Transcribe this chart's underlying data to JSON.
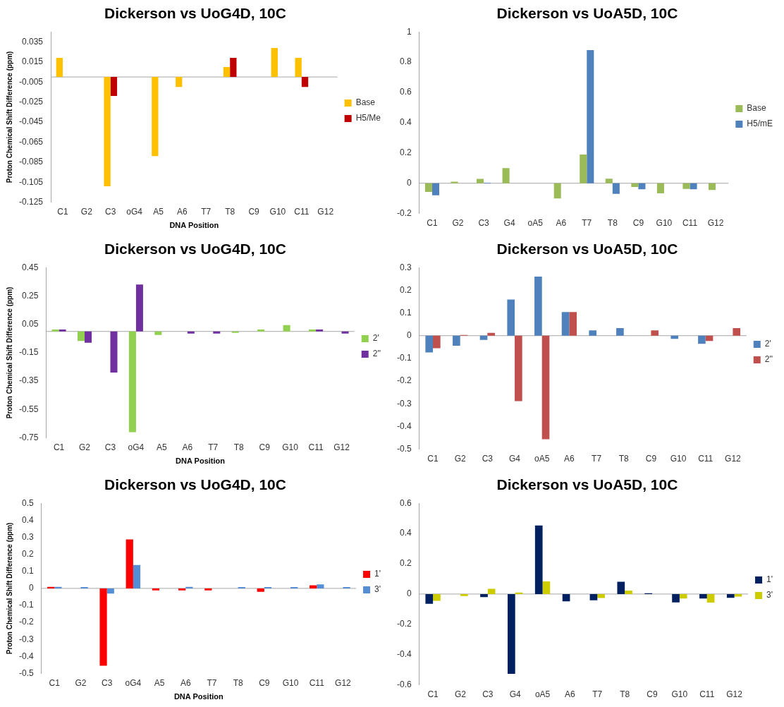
{
  "chart_data": [
    {
      "type": "bar",
      "title": "Dickerson vs UoG4D, 10C",
      "xlabel": "DNA Position",
      "ylabel": "Proton Chemical Shift Difference (ppm)",
      "categories": [
        "C1",
        "G2",
        "C3",
        "oG4",
        "A5",
        "A6",
        "T7",
        "T8",
        "C9",
        "G10",
        "C11",
        "G12"
      ],
      "series": [
        {
          "name": "Base",
          "color": "#ffc000",
          "values": [
            0.019,
            0,
            -0.109,
            0,
            -0.079,
            -0.01,
            0,
            0.01,
            0,
            0.029,
            0.019,
            0
          ]
        },
        {
          "name": "H5/Me",
          "color": "#c00000",
          "values": [
            0,
            0,
            -0.019,
            0,
            0,
            0,
            0,
            0.019,
            0,
            0,
            -0.01,
            0
          ]
        }
      ],
      "ref_lines": [
        {
          "axis": "y",
          "value": 0,
          "color": "#a6a6a6"
        }
      ],
      "ylim": [
        -0.125,
        0.045
      ],
      "yticks": [
        -0.125,
        -0.105,
        -0.085,
        -0.065,
        -0.045,
        -0.025,
        -0.005,
        0.015,
        0.035
      ],
      "grid": false,
      "legend": "right"
    },
    {
      "type": "bar",
      "title": "Dickerson vs UoA5D, 10C",
      "categories": [
        "C1",
        "G2",
        "C3",
        "G4",
        "oA5",
        "A6",
        "T7",
        "T8",
        "C9",
        "G10",
        "C11",
        "G12"
      ],
      "series": [
        {
          "name": "Base",
          "color": "#9bbb59",
          "values": [
            -0.057,
            0.01,
            0.029,
            0.1,
            0,
            -0.1,
            0.19,
            0.03,
            -0.025,
            -0.067,
            -0.037,
            -0.045
          ]
        },
        {
          "name": "H5/mE",
          "color": "#4f81bd",
          "values": [
            -0.08,
            0,
            0.003,
            0,
            0,
            0,
            0.88,
            -0.07,
            -0.04,
            0,
            -0.04,
            0
          ]
        }
      ],
      "ref_lines": [
        {
          "axis": "y",
          "value": 0,
          "color": "#a6a6a6"
        }
      ],
      "ylim": [
        -0.2,
        1
      ],
      "yticks": [
        -0.2,
        0,
        0.2,
        0.4,
        0.6,
        0.8,
        1
      ],
      "grid": false,
      "legend": "right"
    },
    {
      "type": "bar",
      "title": "Dickerson vs UoG4D, 10C",
      "xlabel": "DNA Position",
      "ylabel": "Proton Chemical Shift Difference (ppm)",
      "categories": [
        "C1",
        "G2",
        "C3",
        "oG4",
        "A5",
        "A6",
        "T7",
        "T8",
        "C9",
        "G10",
        "C11",
        "G12"
      ],
      "series": [
        {
          "name": "2'",
          "color": "#92d050",
          "values": [
            0.013,
            -0.067,
            0,
            -0.71,
            -0.025,
            0,
            0,
            -0.01,
            0.013,
            0.044,
            0.013,
            0
          ]
        },
        {
          "name": "2''",
          "color": "#7030a0",
          "values": [
            0.013,
            -0.08,
            -0.29,
            0.33,
            0,
            -0.015,
            -0.015,
            0,
            0,
            0,
            0.013,
            -0.015
          ]
        }
      ],
      "ref_lines": [
        {
          "axis": "y",
          "value": 0,
          "color": "#a6a6a6"
        }
      ],
      "ylim": [
        -0.75,
        0.45
      ],
      "yticks": [
        -0.75,
        -0.55,
        -0.35,
        -0.15,
        0.05,
        0.25,
        0.45
      ],
      "grid": false,
      "legend": "right"
    },
    {
      "type": "bar",
      "title": "Dickerson vs UoA5D, 10C",
      "categories": [
        "C1",
        "G2",
        "C3",
        "G4",
        "oA5",
        "A6",
        "T7",
        "T8",
        "C9",
        "G10",
        "C11",
        "G12"
      ],
      "series": [
        {
          "name": "2'",
          "color": "#4f81bd",
          "values": [
            -0.074,
            -0.044,
            -0.019,
            0.159,
            0.26,
            0.104,
            0.023,
            0.033,
            0,
            -0.014,
            -0.036,
            0
          ]
        },
        {
          "name": "2''",
          "color": "#c0504d",
          "values": [
            -0.055,
            0.003,
            0.012,
            -0.288,
            -0.456,
            0.104,
            0,
            0,
            0.023,
            0,
            -0.023,
            0.033
          ]
        }
      ],
      "ref_lines": [
        {
          "axis": "y",
          "value": 0,
          "color": "#a6a6a6"
        }
      ],
      "ylim": [
        -0.5,
        0.3
      ],
      "yticks": [
        -0.5,
        -0.4,
        -0.3,
        -0.2,
        -0.1,
        0,
        0.1,
        0.2,
        0.3
      ],
      "grid": false,
      "legend": "right"
    },
    {
      "type": "bar",
      "title": "Dickerson vs UoG4D, 10C",
      "xlabel": "DNA Position",
      "ylabel": "Proton Chemical Shift Difference (ppm)",
      "categories": [
        "C1",
        "G2",
        "C3",
        "oG4",
        "A5",
        "A6",
        "T7",
        "T8",
        "C9",
        "G10",
        "C11",
        "G12"
      ],
      "series": [
        {
          "name": "1'",
          "color": "#ff0000",
          "values": [
            0.009,
            0,
            -0.454,
            0.288,
            -0.012,
            -0.012,
            -0.012,
            0,
            -0.02,
            0,
            0.018,
            0
          ]
        },
        {
          "name": "3'",
          "color": "#558ed5",
          "values": [
            0.009,
            0.008,
            -0.03,
            0.137,
            0,
            0.009,
            0,
            0.008,
            0.008,
            0.008,
            0.023,
            0.008
          ]
        }
      ],
      "ref_lines": [
        {
          "axis": "y",
          "value": 0,
          "color": "#a6a6a6"
        }
      ],
      "ylim": [
        -0.5,
        0.5
      ],
      "yticks": [
        -0.5,
        -0.4,
        -0.3,
        -0.2,
        -0.1,
        0,
        0.1,
        0.2,
        0.3,
        0.4,
        0.5
      ],
      "grid": false,
      "legend": "right"
    },
    {
      "type": "bar",
      "title": "Dickerson vs UoA5D, 10C",
      "categories": [
        "C1",
        "G2",
        "C3",
        "G4",
        "oA5",
        "A6",
        "T7",
        "T8",
        "C9",
        "G10",
        "C11",
        "G12"
      ],
      "series": [
        {
          "name": "1'",
          "color": "#002060",
          "values": [
            -0.064,
            0,
            -0.02,
            -0.527,
            0.453,
            -0.048,
            -0.041,
            0.081,
            0.005,
            -0.055,
            -0.03,
            -0.025
          ]
        },
        {
          "name": "3'",
          "color": "#cccc00",
          "values": [
            -0.045,
            -0.013,
            0.035,
            0.01,
            0.083,
            0,
            -0.026,
            0.023,
            0,
            -0.03,
            -0.056,
            -0.017
          ]
        }
      ],
      "ref_lines": [
        {
          "axis": "y",
          "value": 0,
          "color": "#a6a6a6"
        }
      ],
      "ylim": [
        -0.6,
        0.6
      ],
      "yticks": [
        -0.6,
        -0.4,
        -0.2,
        0,
        0.2,
        0.4,
        0.6
      ],
      "grid": false,
      "legend": "right"
    }
  ]
}
